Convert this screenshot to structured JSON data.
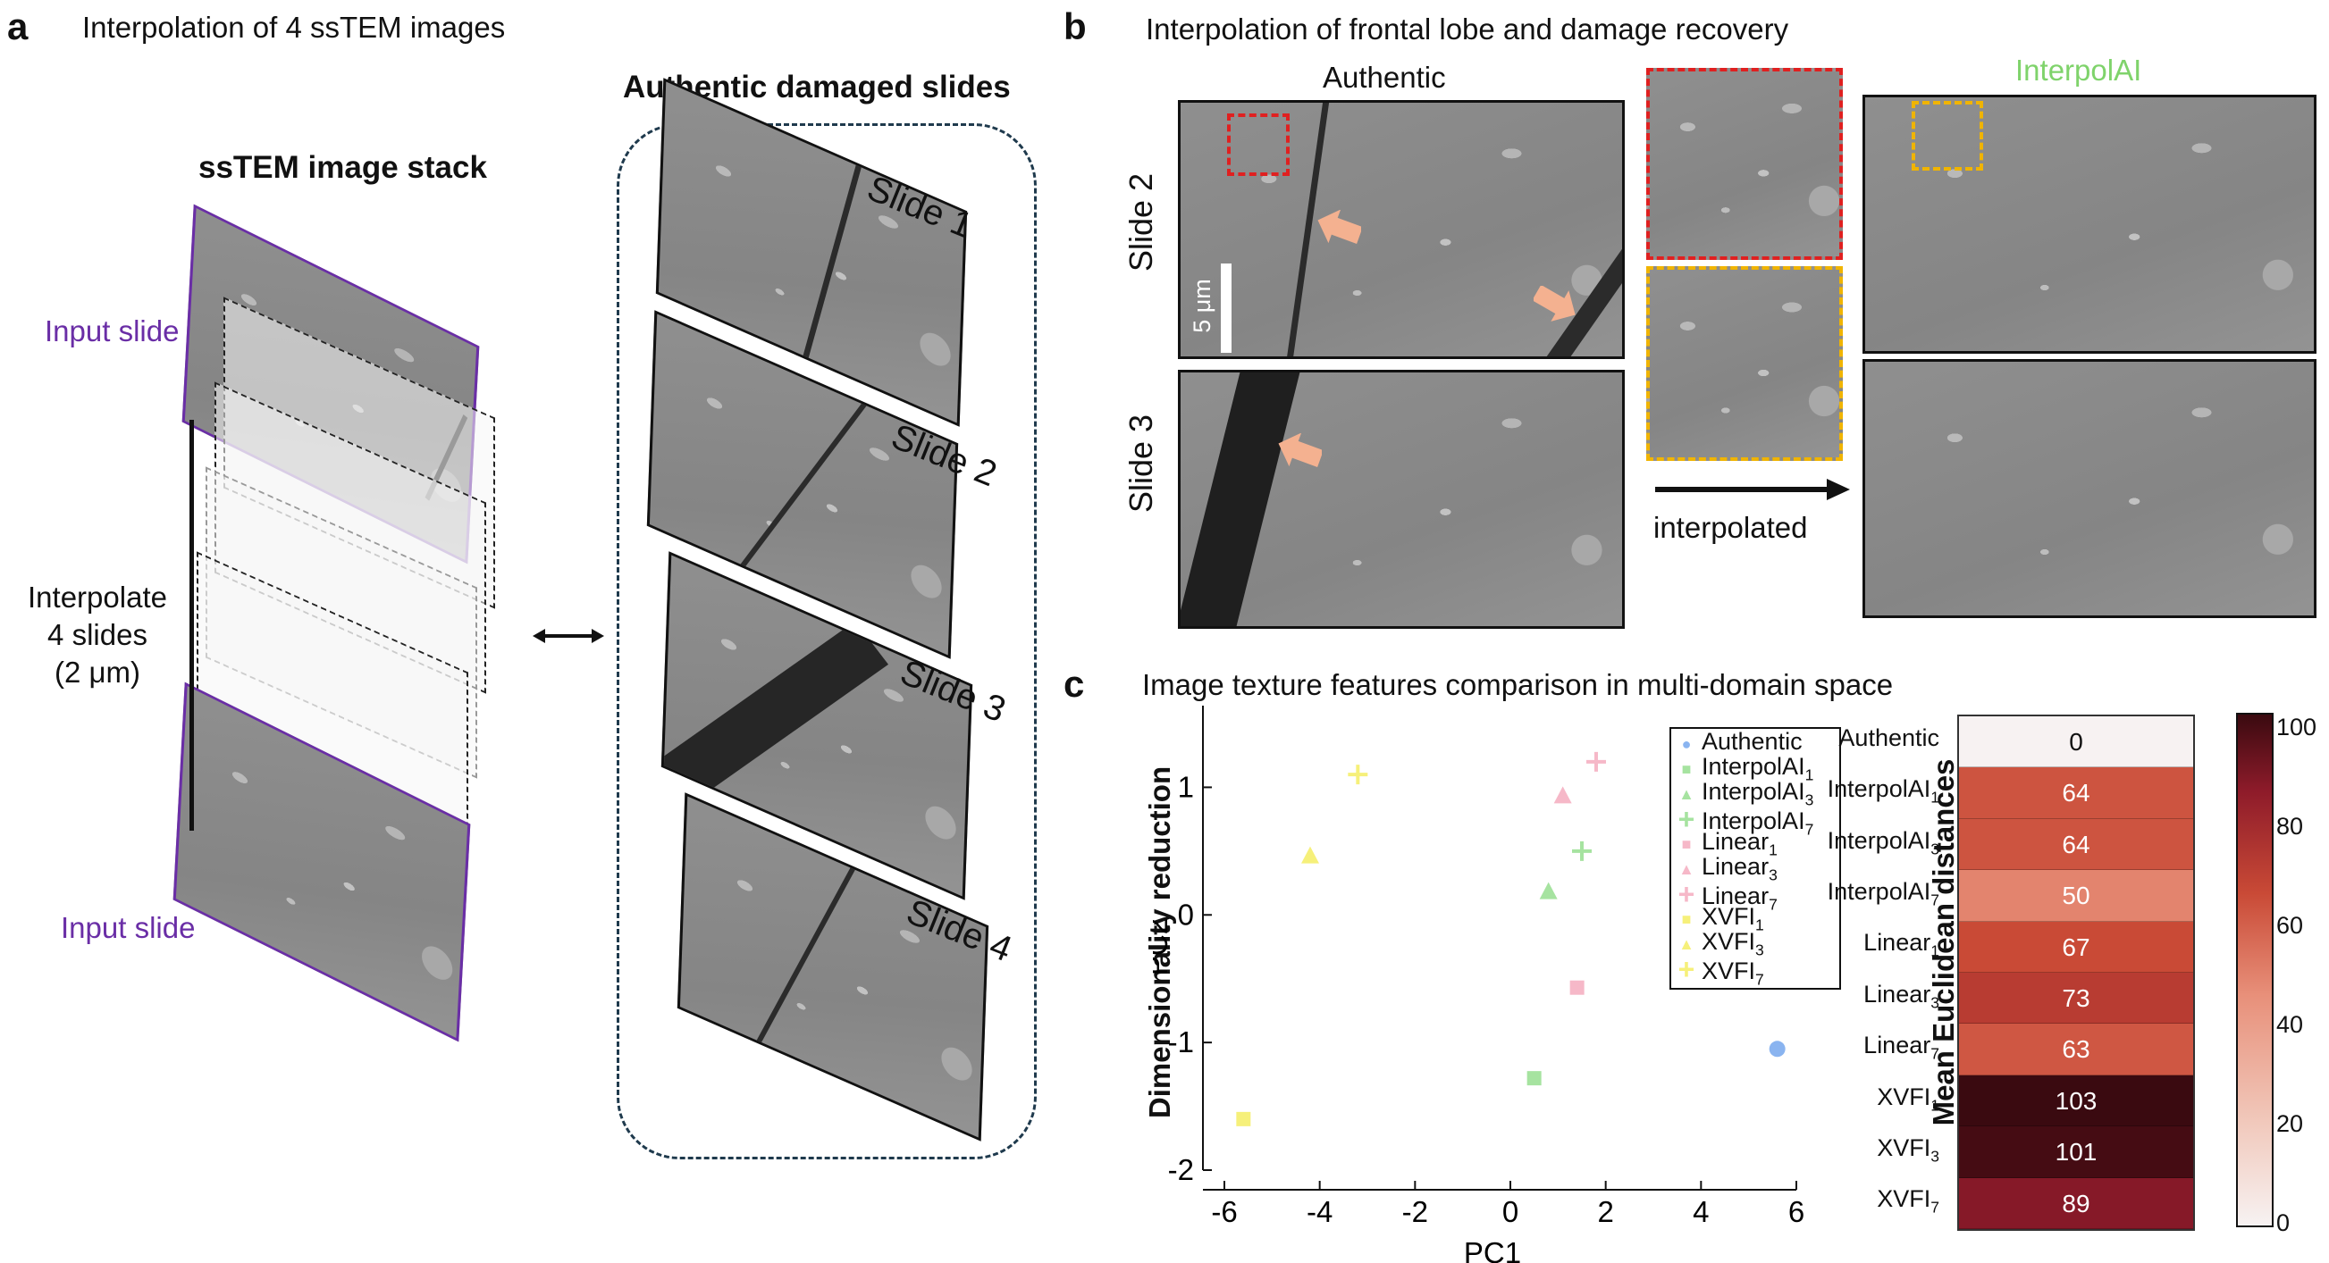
{
  "panel_a": {
    "letter": "a",
    "title": "Interpolation of 4 ssTEM images",
    "stack_title": "ssTEM image stack",
    "damaged_title": "Authentic damaged slides",
    "input_top": "Input slide",
    "input_bottom": "Input slide",
    "interp_line1": "Interpolate",
    "interp_line2": "4 slides",
    "interp_line3": "(2 μm)",
    "slides": [
      "Slide 1",
      "Slide 2",
      "Slide 3",
      "Slide 4"
    ],
    "colors": {
      "input_label": "#6a2ea6",
      "input_border": "#6a2ea6",
      "damaged_box": "#1f3a4d"
    }
  },
  "panel_b": {
    "letter": "b",
    "title": "Interpolation of frontal lobe and damage recovery",
    "authentic_label": "Authentic",
    "interpolai_label": "InterpolAI",
    "row1_label": "Slide 2",
    "row2_label": "Slide 3",
    "scale_bar": "5 μm",
    "arrow_label": "interpolated",
    "colors": {
      "interpolai": "#7fd36b",
      "red_box": "#e02020",
      "yellow_box": "#f0b400",
      "damage_arrow": "#f4b190"
    }
  },
  "panel_c": {
    "letter": "c",
    "title": "Image texture features comparison in multi-domain space",
    "left_label": "Dimensionality reduction",
    "right_label": "Mean Euclidean distances"
  },
  "chart_data": [
    {
      "type": "scatter",
      "xlabel": "PC1",
      "ylabel": "PC2",
      "xlim": [
        -6,
        6
      ],
      "ylim": [
        -2,
        1.5
      ],
      "xticks": [
        "-6",
        "-4",
        "-2",
        "0",
        "2",
        "4",
        "6"
      ],
      "yticks": [
        "1",
        "0",
        "-1",
        "-2"
      ],
      "grid": false,
      "legend": "top-right",
      "series": [
        {
          "name": "Authentic",
          "sub": "",
          "marker": "circle",
          "color": "#8ab4f0",
          "points": [
            [
              5.6,
              -1.05
            ]
          ]
        },
        {
          "name": "InterpolAI",
          "sub": "1",
          "marker": "square",
          "color": "#a6e3a0",
          "points": [
            [
              0.5,
              -1.28
            ]
          ]
        },
        {
          "name": "InterpolAI",
          "sub": "3",
          "marker": "triangle",
          "color": "#a6e3a0",
          "points": [
            [
              0.8,
              0.18
            ]
          ]
        },
        {
          "name": "InterpolAI",
          "sub": "7",
          "marker": "plus",
          "color": "#a6e3a0",
          "points": [
            [
              1.5,
              0.5
            ]
          ]
        },
        {
          "name": "Linear",
          "sub": "1",
          "marker": "square",
          "color": "#f6b8c8",
          "points": [
            [
              1.4,
              -0.57
            ]
          ]
        },
        {
          "name": "Linear",
          "sub": "3",
          "marker": "triangle",
          "color": "#f6b8c8",
          "points": [
            [
              1.1,
              0.93
            ]
          ]
        },
        {
          "name": "Linear",
          "sub": "7",
          "marker": "plus",
          "color": "#f6b8c8",
          "points": [
            [
              1.8,
              1.2
            ]
          ]
        },
        {
          "name": "XVFI",
          "sub": "1",
          "marker": "square",
          "color": "#f6f07a",
          "points": [
            [
              -5.6,
              -1.6
            ]
          ]
        },
        {
          "name": "XVFI",
          "sub": "3",
          "marker": "triangle",
          "color": "#f6f07a",
          "points": [
            [
              -4.2,
              0.46
            ]
          ]
        },
        {
          "name": "XVFI",
          "sub": "7",
          "marker": "plus",
          "color": "#f6f07a",
          "points": [
            [
              -3.2,
              1.1
            ]
          ]
        }
      ]
    },
    {
      "type": "heatmap",
      "rows": [
        {
          "name": "Authentic",
          "sub": "",
          "value": 0
        },
        {
          "name": "InterpolAI",
          "sub": "1",
          "value": 64
        },
        {
          "name": "InterpolAI",
          "sub": "3",
          "value": 64
        },
        {
          "name": "InterpolAI",
          "sub": "7",
          "value": 50
        },
        {
          "name": "Linear",
          "sub": "1",
          "value": 67
        },
        {
          "name": "Linear",
          "sub": "3",
          "value": 73
        },
        {
          "name": "Linear",
          "sub": "7",
          "value": 63
        },
        {
          "name": "XVFI",
          "sub": "1",
          "value": 103
        },
        {
          "name": "XVFI",
          "sub": "3",
          "value": 101
        },
        {
          "name": "XVFI",
          "sub": "7",
          "value": 89
        }
      ],
      "colorbar_range": [
        0,
        103
      ],
      "colorbar_ticks": [
        "100",
        "80",
        "60",
        "40",
        "20",
        "0"
      ]
    }
  ]
}
